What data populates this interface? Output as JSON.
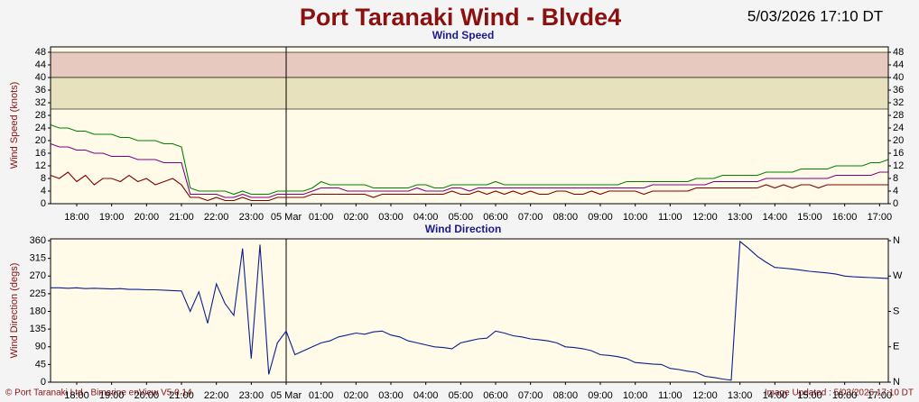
{
  "header": {
    "title": "Port Taranaki Wind - Blvde4",
    "timestamp": "5/03/2026 17:10 DT"
  },
  "footer": {
    "copyright": "© Port Taranaki Ltd - Bimarine enView V5.0.14",
    "updated": "Image Updated : 5/03/2026 17:10 DT"
  },
  "chart_data": [
    {
      "type": "line",
      "title": "Wind Speed",
      "y_label": "Wind Speed (knots)",
      "grid": false,
      "categories": [
        null,
        null,
        null,
        "18:00",
        null,
        null,
        null,
        "19:00",
        null,
        null,
        null,
        "20:00",
        null,
        null,
        null,
        "21:00",
        null,
        null,
        null,
        "22:00",
        null,
        null,
        null,
        "23:00",
        null,
        null,
        null,
        "05 Mar",
        null,
        null,
        null,
        "01:00",
        null,
        null,
        null,
        "02:00",
        null,
        null,
        null,
        "03:00",
        null,
        null,
        null,
        "04:00",
        null,
        null,
        null,
        "05:00",
        null,
        null,
        null,
        "06:00",
        null,
        null,
        null,
        "07:00",
        null,
        null,
        null,
        "08:00",
        null,
        null,
        null,
        "09:00",
        null,
        null,
        null,
        "10:00",
        null,
        null,
        null,
        "11:00",
        null,
        null,
        null,
        "12:00",
        null,
        null,
        null,
        "13:00",
        null,
        null,
        null,
        "14:00",
        null,
        null,
        null,
        "15:00",
        null,
        null,
        null,
        "16:00",
        null,
        null,
        null,
        "17:00",
        null
      ],
      "series": [
        {
          "color": "#008000",
          "values": [
            25,
            24,
            24,
            23,
            23,
            22,
            22,
            22,
            21,
            21,
            20,
            20,
            20,
            19,
            19,
            18,
            5,
            4,
            4,
            4,
            4,
            3,
            4,
            3,
            3,
            3,
            4,
            4,
            4,
            4,
            5,
            7,
            6,
            6,
            6,
            6,
            6,
            5,
            5,
            5,
            5,
            5,
            6,
            6,
            5,
            5,
            6,
            6,
            6,
            6,
            6,
            7,
            6,
            6,
            6,
            6,
            6,
            6,
            6,
            6,
            6,
            6,
            6,
            6,
            6,
            6,
            7,
            7,
            7,
            7,
            7,
            7,
            7,
            7,
            8,
            8,
            8,
            9,
            9,
            9,
            9,
            9,
            10,
            10,
            10,
            10,
            11,
            11,
            11,
            11,
            12,
            12,
            12,
            12,
            13,
            13,
            14
          ]
        },
        {
          "color": "#800080",
          "values": [
            19,
            18,
            18,
            17,
            17,
            16,
            16,
            15,
            15,
            15,
            14,
            14,
            14,
            13,
            13,
            13,
            3,
            3,
            3,
            3,
            2,
            2,
            3,
            2,
            2,
            2,
            3,
            3,
            3,
            3,
            4,
            5,
            5,
            5,
            4,
            4,
            4,
            4,
            4,
            4,
            4,
            4,
            5,
            4,
            4,
            4,
            5,
            5,
            4,
            5,
            5,
            5,
            5,
            5,
            5,
            5,
            5,
            5,
            5,
            5,
            5,
            5,
            5,
            5,
            5,
            5,
            5,
            5,
            5,
            6,
            6,
            6,
            6,
            6,
            6,
            6,
            7,
            7,
            7,
            7,
            7,
            7,
            8,
            8,
            8,
            8,
            8,
            8,
            8,
            8,
            9,
            9,
            9,
            9,
            9,
            10,
            10
          ]
        },
        {
          "color": "#800000",
          "values": [
            9,
            8,
            10,
            7,
            9,
            6,
            8,
            8,
            7,
            9,
            7,
            8,
            6,
            7,
            8,
            6,
            2,
            2,
            1,
            2,
            1,
            1,
            2,
            1,
            1,
            1,
            2,
            2,
            2,
            2,
            3,
            3,
            3,
            3,
            3,
            3,
            3,
            2,
            3,
            3,
            3,
            3,
            3,
            3,
            3,
            3,
            4,
            3,
            3,
            4,
            3,
            4,
            3,
            4,
            3,
            4,
            3,
            3,
            4,
            4,
            3,
            3,
            4,
            3,
            4,
            4,
            4,
            4,
            3,
            4,
            4,
            4,
            4,
            4,
            5,
            5,
            5,
            5,
            5,
            5,
            5,
            5,
            6,
            5,
            6,
            5,
            6,
            6,
            5,
            6,
            6,
            6,
            6,
            6,
            6,
            6,
            6
          ]
        }
      ],
      "ylim": [
        0,
        48
      ],
      "yticks": [
        0,
        4,
        8,
        12,
        16,
        20,
        24,
        28,
        32,
        36,
        40,
        44,
        48
      ],
      "bands": [
        {
          "from": 40,
          "to": 48,
          "color": "#e8c9c0"
        },
        {
          "from": 30,
          "to": 40,
          "color": "#e7e1bd"
        }
      ]
    },
    {
      "type": "line",
      "title": "Wind Direction",
      "y_label": "Wind Direction (degs)",
      "grid": false,
      "categories": [
        null,
        null,
        null,
        "18:00",
        null,
        null,
        null,
        "19:00",
        null,
        null,
        null,
        "20:00",
        null,
        null,
        null,
        "21:00",
        null,
        null,
        null,
        "22:00",
        null,
        null,
        null,
        "23:00",
        null,
        null,
        null,
        "05 Mar",
        null,
        null,
        null,
        "01:00",
        null,
        null,
        null,
        "02:00",
        null,
        null,
        null,
        "03:00",
        null,
        null,
        null,
        "04:00",
        null,
        null,
        null,
        "05:00",
        null,
        null,
        null,
        "06:00",
        null,
        null,
        null,
        "07:00",
        null,
        null,
        null,
        "08:00",
        null,
        null,
        null,
        "09:00",
        null,
        null,
        null,
        "10:00",
        null,
        null,
        null,
        "11:00",
        null,
        null,
        null,
        "12:00",
        null,
        null,
        null,
        "13:00",
        null,
        null,
        null,
        "14:00",
        null,
        null,
        null,
        "15:00",
        null,
        null,
        null,
        "16:00",
        null,
        null,
        null,
        "17:00",
        null
      ],
      "series": [
        {
          "color": "#0a1f8f",
          "values": [
            240,
            240,
            239,
            240,
            238,
            239,
            238,
            237,
            238,
            236,
            236,
            235,
            235,
            234,
            233,
            232,
            180,
            230,
            150,
            250,
            200,
            170,
            340,
            60,
            350,
            20,
            100,
            130,
            70,
            80,
            90,
            100,
            105,
            115,
            120,
            125,
            122,
            128,
            130,
            120,
            115,
            105,
            100,
            95,
            90,
            88,
            85,
            100,
            105,
            110,
            112,
            130,
            125,
            118,
            115,
            110,
            108,
            105,
            100,
            90,
            88,
            85,
            80,
            70,
            68,
            65,
            60,
            50,
            48,
            46,
            45,
            35,
            32,
            28,
            25,
            15,
            12,
            8,
            5,
            358,
            340,
            320,
            305,
            292,
            290,
            288,
            285,
            282,
            280,
            278,
            275,
            270,
            268,
            267,
            266,
            265,
            264
          ]
        }
      ],
      "ylim": [
        0,
        360
      ],
      "yticks": [
        0,
        45,
        90,
        135,
        180,
        225,
        270,
        315,
        360
      ],
      "y2lim": [
        0,
        360
      ],
      "y2ticks": [
        {
          "value": 0,
          "label": "N"
        },
        {
          "value": 90,
          "label": "E"
        },
        {
          "value": 180,
          "label": "S"
        },
        {
          "value": 270,
          "label": "W"
        },
        {
          "value": 360,
          "label": "N"
        }
      ]
    }
  ]
}
